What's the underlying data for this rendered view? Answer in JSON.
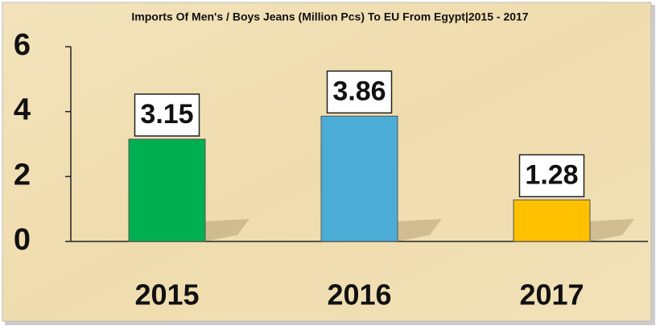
{
  "chart_data": {
    "type": "bar",
    "title": "Imports Of Men's / Boys Jeans (Million Pcs) To EU From Egypt|2015 - 2017",
    "categories": [
      "2015",
      "2016",
      "2017"
    ],
    "values": [
      3.15,
      3.86,
      1.28
    ],
    "colors": [
      "#00b050",
      "#4bacd6",
      "#ffc000"
    ],
    "ylim": [
      0,
      6
    ],
    "yticks": [
      0,
      2,
      4,
      6
    ]
  }
}
